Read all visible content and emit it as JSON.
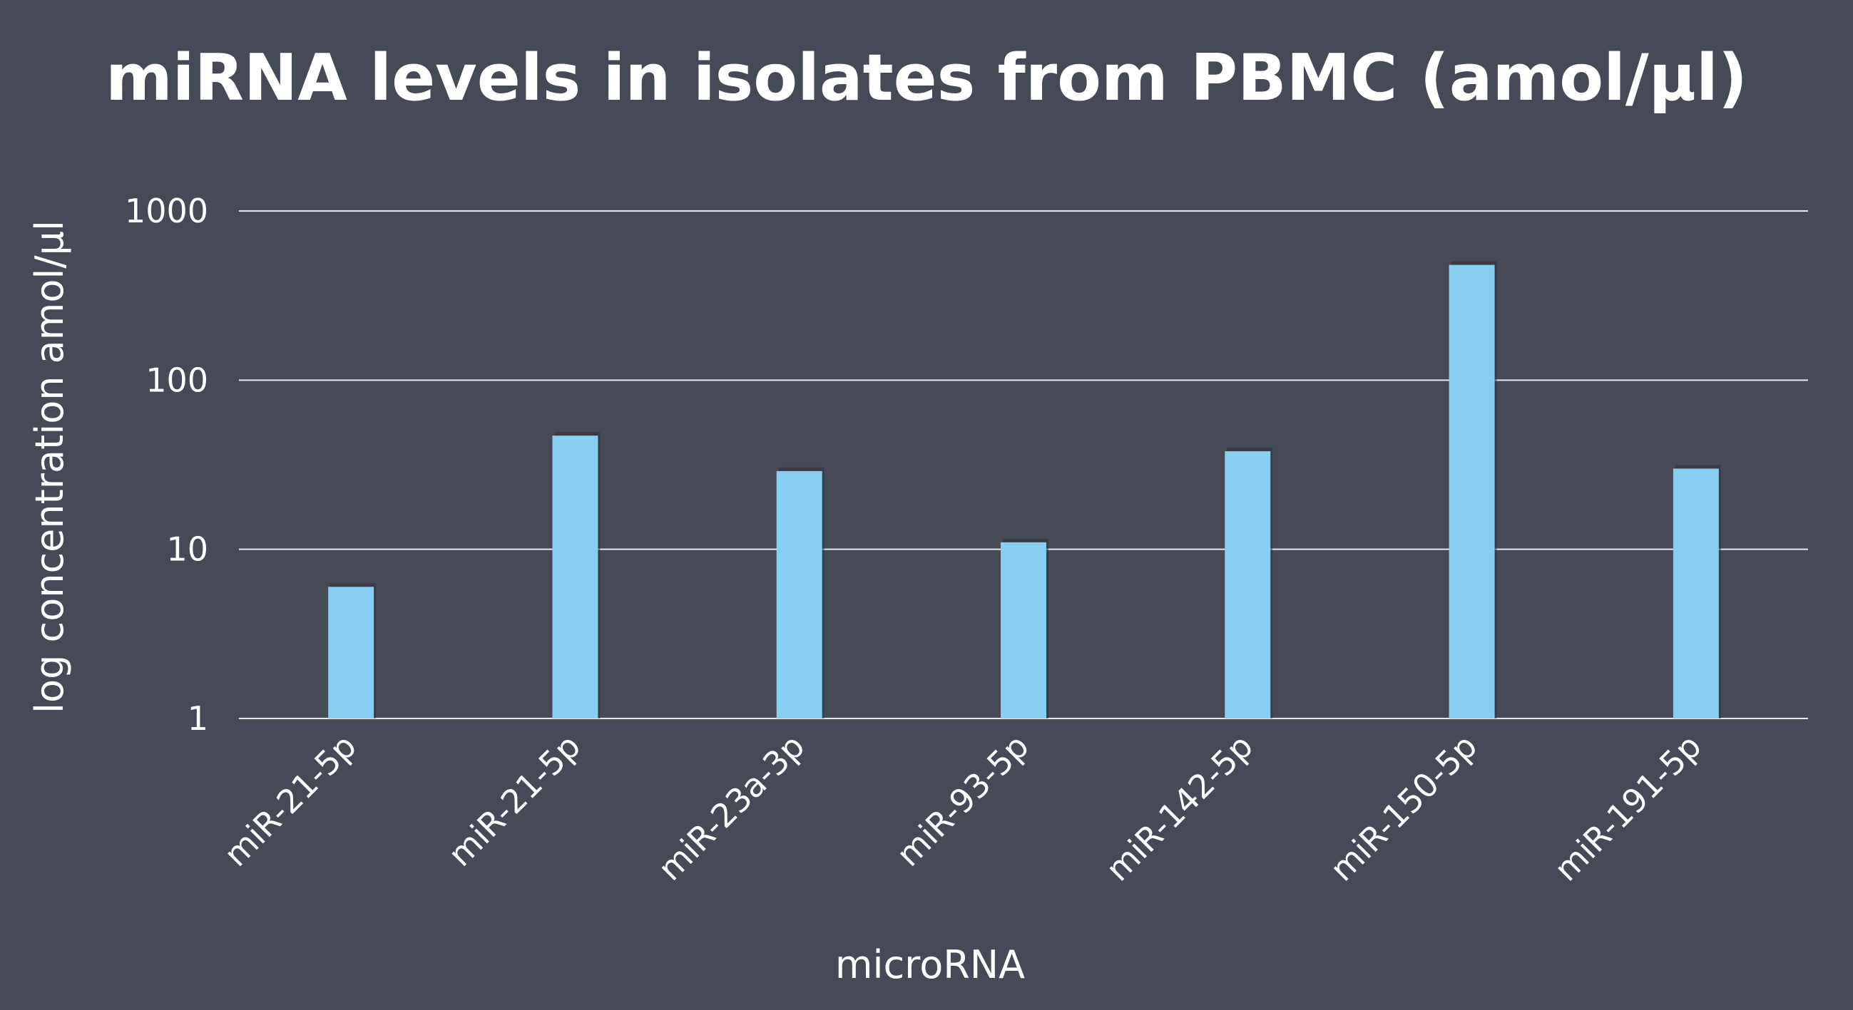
{
  "chart_data": {
    "type": "bar",
    "title": "miRNA levels in isolates from PBMC (amol/µl)",
    "xlabel": "microRNA",
    "ylabel": "log concentration amol/µl",
    "y_scale": "log",
    "ylim": [
      1,
      1000
    ],
    "y_ticks": [
      1,
      10,
      100,
      1000
    ],
    "y_tick_labels": [
      "1",
      "10",
      "100",
      "1000"
    ],
    "grid": true,
    "legend": "none",
    "categories": [
      "miR-21-5p",
      "miR-21-5p",
      "miR-23a-3p",
      "miR-93-5p",
      "miR-142-5p",
      "miR-150-5p",
      "miR-191-5p"
    ],
    "values": [
      6,
      47,
      29,
      11,
      38,
      480,
      30
    ],
    "bar_color": "#87cef0",
    "background_color": "#454a56",
    "grid_color": "#e8e8e8",
    "text_color": "#ffffff"
  }
}
